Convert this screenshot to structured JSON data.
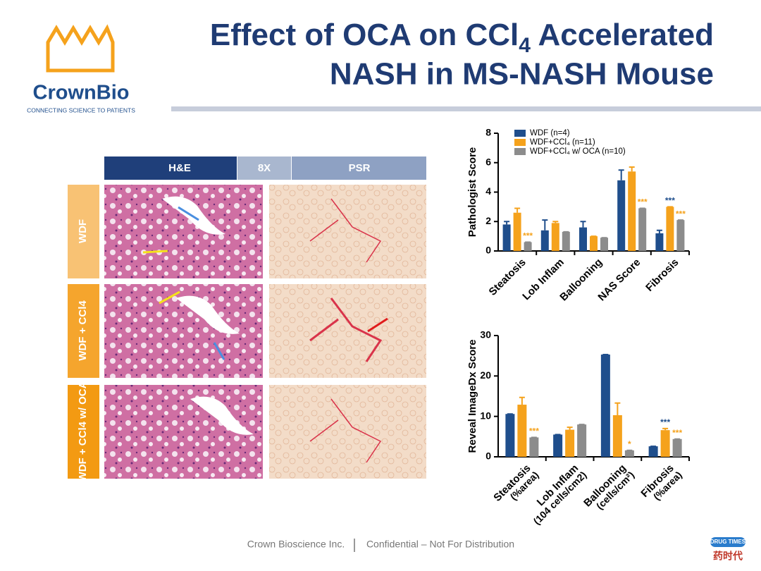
{
  "header": {
    "title_line1": "Effect of OCA on CCl",
    "title_sub": "4",
    "title_line1_end": " Accelerated",
    "title_line2": "NASH in MS-NASH Mouse"
  },
  "logo": {
    "name": "CrownBio",
    "tagline": "CONNECTING SCIENCE TO PATIENTS"
  },
  "panel": {
    "stains": [
      "H&E",
      "8X",
      "PSR"
    ],
    "rows": [
      "WDF",
      "WDF + CCl4",
      "WDF + CCl4 w/ OCA"
    ]
  },
  "chart_data": [
    {
      "type": "bar",
      "y_label": "Pathologist Score",
      "categories": [
        "Steatosis",
        "Lob Inflam",
        "Ballooning",
        "NAS Score",
        "Fibrosis"
      ],
      "ylim": [
        0,
        8
      ],
      "yticks": [
        0,
        2,
        4,
        6,
        8
      ],
      "series": [
        {
          "name": "WDF (n=4)",
          "color": "#1f4e8c",
          "values": [
            1.8,
            1.4,
            1.6,
            4.8,
            1.2
          ],
          "errors": [
            0.2,
            0.7,
            0.4,
            0.7,
            0.2
          ],
          "significance": [
            null,
            null,
            null,
            null,
            null
          ]
        },
        {
          "name": "WDF+CCl₄ (n=11)",
          "color": "#f5a21c",
          "values": [
            2.6,
            1.9,
            1.0,
            5.4,
            3.0
          ],
          "errors": [
            0.3,
            0.1,
            0.0,
            0.3,
            0.0
          ],
          "significance": [
            null,
            null,
            null,
            null,
            "***"
          ],
          "significance_color": "#1f4e8c"
        },
        {
          "name": "WDF+CCl₄ w/ OCA (n=10)",
          "color": "#8c8c8c",
          "values": [
            0.6,
            1.3,
            0.9,
            2.9,
            2.1
          ],
          "errors": [
            0,
            0,
            0,
            0,
            0
          ],
          "significance": [
            "***",
            null,
            null,
            "***",
            "***"
          ],
          "significance_color": "#f5a21c"
        }
      ]
    },
    {
      "type": "bar",
      "y_label": "Reveal ImageDx Score",
      "categories": [
        "Steatosis",
        "Lob Inflam",
        "Ballooning",
        "Fibrosis"
      ],
      "category_units": [
        "(%area)",
        "(104 cells/cm2)",
        "(cells/cm²)",
        "(%area)"
      ],
      "ylim": [
        0,
        30
      ],
      "yticks": [
        0,
        10,
        20,
        30
      ],
      "series": [
        {
          "name": "WDF (n=4)",
          "color": "#1f4e8c",
          "values": [
            10.6,
            5.5,
            25.3,
            2.6
          ],
          "errors": [
            0,
            0,
            0,
            0
          ],
          "significance": [
            null,
            null,
            null,
            null
          ]
        },
        {
          "name": "WDF+CCl₄ (n=11)",
          "color": "#f5a21c",
          "values": [
            12.9,
            6.7,
            10.3,
            6.6
          ],
          "errors": [
            1.8,
            0.6,
            3.0,
            0.4
          ],
          "significance": [
            null,
            null,
            null,
            "***"
          ],
          "significance_color": "#1f4e8c"
        },
        {
          "name": "WDF+CCl₄ w/ OCA (n=10)",
          "color": "#8c8c8c",
          "values": [
            4.8,
            8.0,
            1.6,
            4.4
          ],
          "errors": [
            0,
            0,
            0,
            0
          ],
          "significance": [
            "***",
            null,
            "*",
            "***"
          ],
          "significance_color": "#f5a21c"
        }
      ]
    }
  ],
  "footer": {
    "company": "Crown Bioscience Inc.",
    "notice": "Confidential – Not For Distribution",
    "watermark_top": "DRUG TIMES",
    "watermark_bottom": "药时代"
  }
}
